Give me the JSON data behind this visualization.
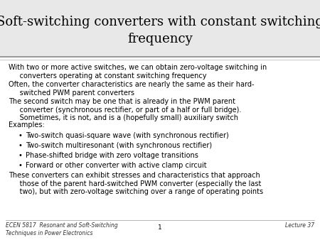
{
  "title": "Soft-switching converters with constant switching\nfrequency",
  "title_fontsize": 13,
  "body_fontsize": 7.0,
  "footer_left": "ECEN 5817  Resonant and Soft-Switching\nTechniques in Power Electronics",
  "footer_center": "1",
  "footer_right": "Lecture 37",
  "footer_fontsize": 5.5,
  "paragraphs": [
    {
      "text": "With two or more active switches, we can obtain zero-voltage switching in\n     converters operating at constant switching frequency",
      "bullet": false,
      "lines": 2
    },
    {
      "text": "Often, the converter characteristics are nearly the same as their hard-\n     switched PWM parent converters",
      "bullet": false,
      "lines": 2
    },
    {
      "text": "The second switch may be one that is already in the PWM parent\n     converter (synchronous rectifier, or part of a half or full bridge).\n     Sometimes, it is not, and is a (hopefully small) auxiliary switch",
      "bullet": false,
      "lines": 3
    },
    {
      "text": "Examples:",
      "bullet": false,
      "lines": 1
    },
    {
      "text": "Two-switch quasi-square wave (with synchronous rectifier)",
      "bullet": true,
      "lines": 1
    },
    {
      "text": "Two-switch multiresonant (with synchronous rectifier)",
      "bullet": true,
      "lines": 1
    },
    {
      "text": "Phase-shifted bridge with zero voltage transitions",
      "bullet": true,
      "lines": 1
    },
    {
      "text": "Forward or other converter with active clamp circuit",
      "bullet": true,
      "lines": 1
    },
    {
      "text": "These converters can exhibit stresses and characteristics that approach\n     those of the parent hard-switched PWM converter (especially the last\n     two), but with zero-voltage switching over a range of operating points",
      "bullet": false,
      "lines": 3
    }
  ]
}
